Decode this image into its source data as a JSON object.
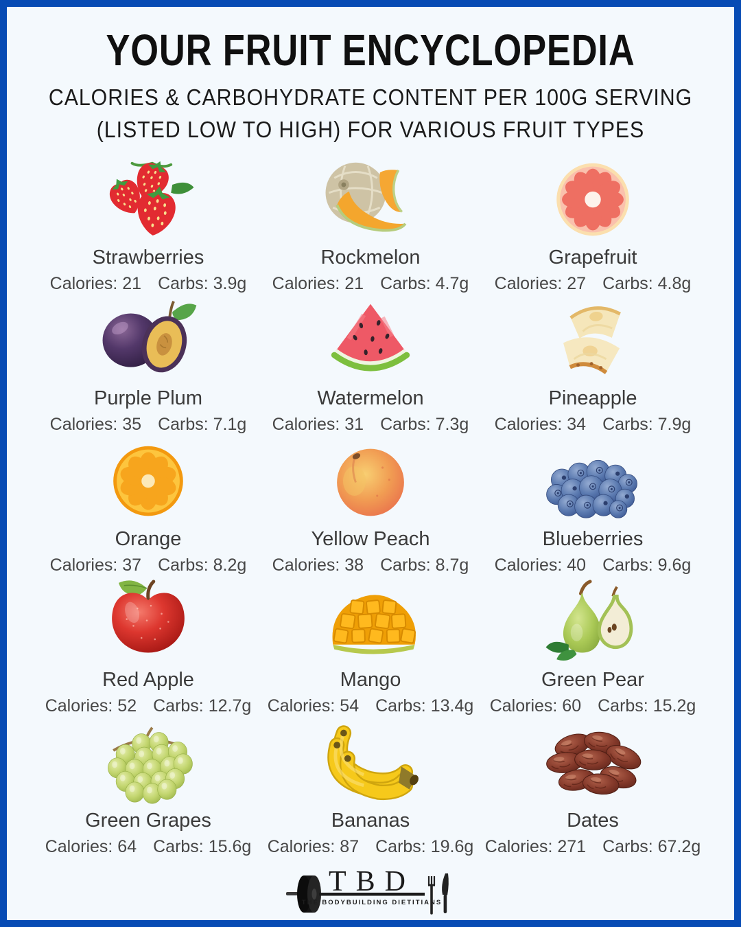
{
  "colors": {
    "frame_border": "#074bb4",
    "background": "#f4f9fd",
    "title_text": "#101010",
    "body_text": "#3a3a3a"
  },
  "header": {
    "title": "YOUR FRUIT ENCYCLOPEDIA",
    "subtitle_line1": "CALORIES & CARBOHYDRATE CONTENT PER 100G SERVING",
    "subtitle_line2": "(LISTED LOW TO HIGH) FOR VARIOUS FRUIT TYPES"
  },
  "labels": {
    "calories_label": "Calories:",
    "carbs_label": "Carbs:"
  },
  "fruits": [
    {
      "name": "Strawberries",
      "calories": "21",
      "carbs": "3.9g",
      "icon": "strawberries-icon"
    },
    {
      "name": "Rockmelon",
      "calories": "21",
      "carbs": "4.7g",
      "icon": "rockmelon-icon"
    },
    {
      "name": "Grapefruit",
      "calories": "27",
      "carbs": "4.8g",
      "icon": "grapefruit-icon"
    },
    {
      "name": "Purple Plum",
      "calories": "35",
      "carbs": "7.1g",
      "icon": "purple-plum-icon"
    },
    {
      "name": "Watermelon",
      "calories": "31",
      "carbs": "7.3g",
      "icon": "watermelon-icon"
    },
    {
      "name": "Pineapple",
      "calories": "34",
      "carbs": "7.9g",
      "icon": "pineapple-icon"
    },
    {
      "name": "Orange",
      "calories": "37",
      "carbs": "8.2g",
      "icon": "orange-icon"
    },
    {
      "name": "Yellow Peach",
      "calories": "38",
      "carbs": "8.7g",
      "icon": "yellow-peach-icon"
    },
    {
      "name": "Blueberries",
      "calories": "40",
      "carbs": "9.6g",
      "icon": "blueberries-icon"
    },
    {
      "name": "Red Apple",
      "calories": "52",
      "carbs": "12.7g",
      "icon": "red-apple-icon"
    },
    {
      "name": "Mango",
      "calories": "54",
      "carbs": "13.4g",
      "icon": "mango-icon"
    },
    {
      "name": "Green Pear",
      "calories": "60",
      "carbs": "15.2g",
      "icon": "green-pear-icon"
    },
    {
      "name": "Green Grapes",
      "calories": "64",
      "carbs": "15.6g",
      "icon": "green-grapes-icon"
    },
    {
      "name": "Bananas",
      "calories": "87",
      "carbs": "19.6g",
      "icon": "bananas-icon"
    },
    {
      "name": "Dates",
      "calories": "271",
      "carbs": "67.2g",
      "icon": "dates-icon"
    }
  ],
  "footer": {
    "logo_text": "TBD",
    "logo_subtext": "THE BODYBUILDING DIETITIANS",
    "logo_icons": [
      "barbell-icon",
      "fork-icon",
      "knife-icon"
    ]
  },
  "chart_data": {
    "type": "table",
    "title": "YOUR FRUIT ENCYCLOPEDIA",
    "subtitle": "CALORIES & CARBOHYDRATE CONTENT PER 100G SERVING (LISTED LOW TO HIGH) FOR VARIOUS FRUIT TYPES",
    "columns": [
      "Fruit",
      "Calories per 100g",
      "Carbs per 100g (g)"
    ],
    "rows": [
      [
        "Strawberries",
        21,
        3.9
      ],
      [
        "Rockmelon",
        21,
        4.7
      ],
      [
        "Grapefruit",
        27,
        4.8
      ],
      [
        "Purple Plum",
        35,
        7.1
      ],
      [
        "Watermelon",
        31,
        7.3
      ],
      [
        "Pineapple",
        34,
        7.9
      ],
      [
        "Orange",
        37,
        8.2
      ],
      [
        "Yellow Peach",
        38,
        8.7
      ],
      [
        "Blueberries",
        40,
        9.6
      ],
      [
        "Red Apple",
        52,
        12.7
      ],
      [
        "Mango",
        54,
        13.4
      ],
      [
        "Green Pear",
        60,
        15.2
      ],
      [
        "Green Grapes",
        64,
        15.6
      ],
      [
        "Bananas",
        87,
        19.6
      ],
      [
        "Dates",
        271,
        67.2
      ]
    ]
  }
}
